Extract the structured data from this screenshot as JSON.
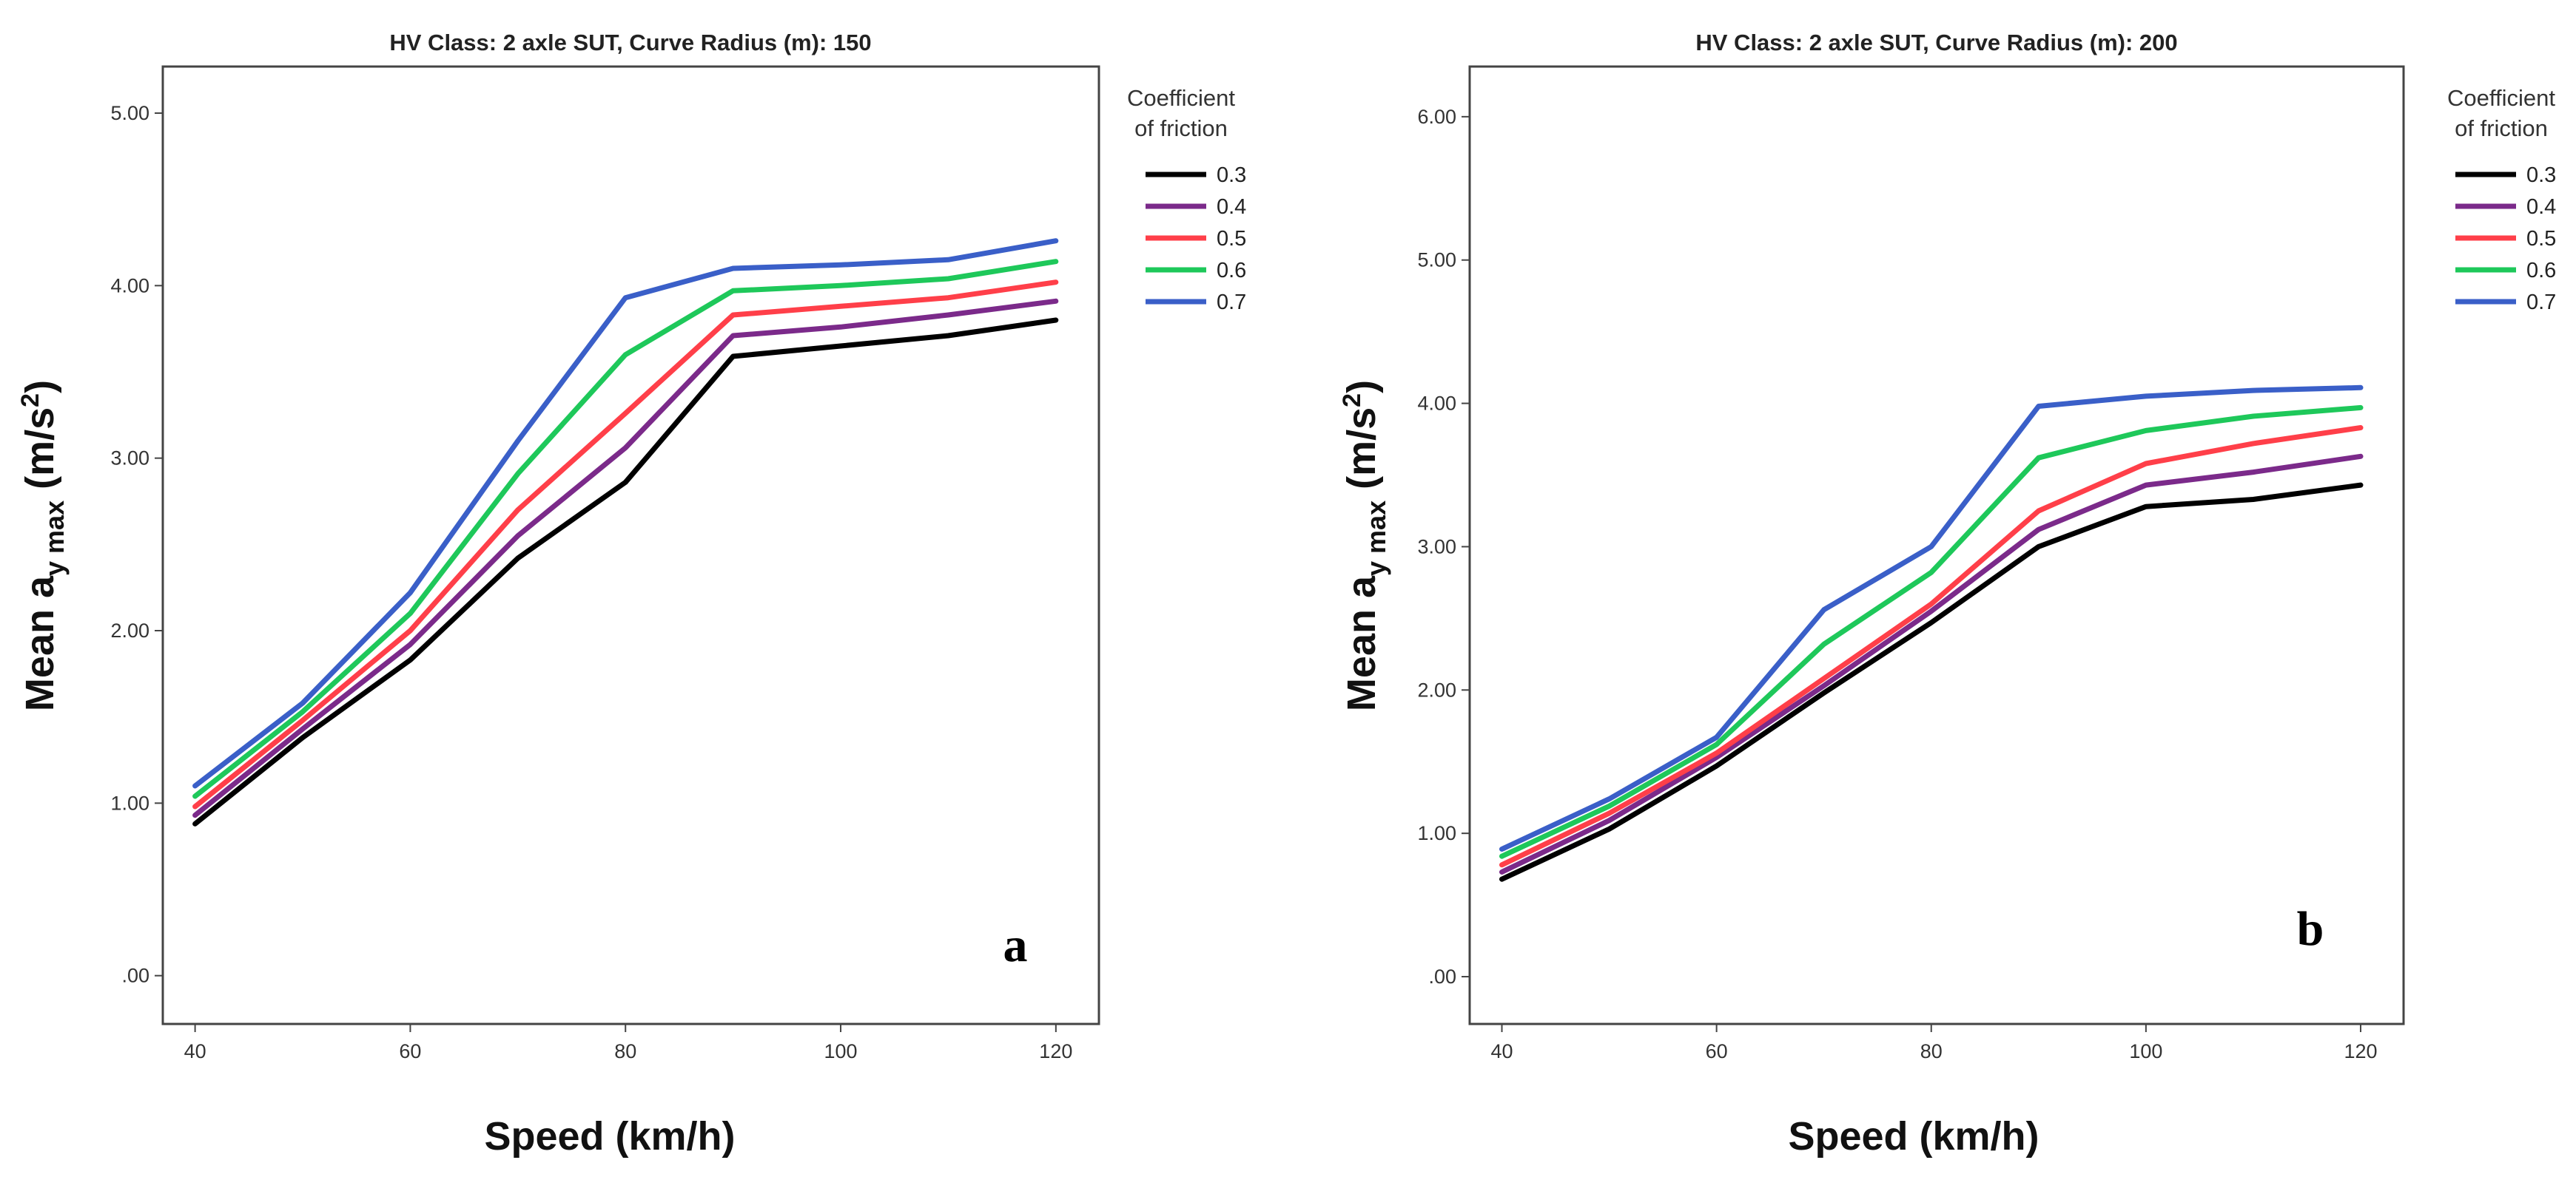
{
  "chart_data": [
    {
      "type": "line",
      "panel_label": "a",
      "title": "HV Class: 2 axle SUT, Curve Radius (m): 150",
      "xlabel": "Speed (km/h)",
      "ylabel_main": "Mean a",
      "ylabel_sub": "y max",
      "ylabel_unit": "(m/s",
      "ylabel_sup": "2",
      "ylabel_close": ")",
      "x": [
        40,
        50,
        60,
        70,
        80,
        90,
        100,
        110,
        120
      ],
      "xticks": [
        40,
        60,
        80,
        100,
        120
      ],
      "xtick_labels": [
        "40",
        "60",
        "80",
        "100",
        "120"
      ],
      "xlim": [
        37,
        124
      ],
      "yticks": [
        0,
        1,
        2,
        3,
        4,
        5
      ],
      "ytick_labels": [
        ".00",
        "1.00",
        "2.00",
        "3.00",
        "4.00",
        "5.00"
      ],
      "ylim": [
        -0.28,
        5.27
      ],
      "legend_title": [
        "Coefficient",
        "of friction"
      ],
      "series": [
        {
          "name": "0.3",
          "color": "#000000",
          "values": [
            0.88,
            1.38,
            1.83,
            2.42,
            2.86,
            3.59,
            3.65,
            3.71,
            3.8
          ]
        },
        {
          "name": "0.4",
          "color": "#7b2a8a",
          "values": [
            0.93,
            1.43,
            1.92,
            2.55,
            3.06,
            3.71,
            3.76,
            3.83,
            3.91
          ]
        },
        {
          "name": "0.5",
          "color": "#ff3f49",
          "values": [
            0.98,
            1.48,
            2.0,
            2.7,
            3.26,
            3.83,
            3.88,
            3.93,
            4.02
          ]
        },
        {
          "name": "0.6",
          "color": "#1ec85a",
          "values": [
            1.04,
            1.53,
            2.1,
            2.91,
            3.6,
            3.97,
            4.0,
            4.04,
            4.14
          ]
        },
        {
          "name": "0.7",
          "color": "#3a5fc8",
          "values": [
            1.1,
            1.58,
            2.22,
            3.1,
            3.93,
            4.1,
            4.12,
            4.15,
            4.26
          ]
        }
      ]
    },
    {
      "type": "line",
      "panel_label": "b",
      "title": "HV Class: 2 axle SUT, Curve Radius (m): 200",
      "xlabel": "Speed (km/h)",
      "ylabel_main": "Mean a",
      "ylabel_sub": "y max",
      "ylabel_unit": "(m/s",
      "ylabel_sup": "2",
      "ylabel_close": ")",
      "x": [
        40,
        50,
        60,
        70,
        80,
        90,
        100,
        110,
        120
      ],
      "xticks": [
        40,
        60,
        80,
        100,
        120
      ],
      "xtick_labels": [
        "40",
        "60",
        "80",
        "100",
        "120"
      ],
      "xlim": [
        37,
        124
      ],
      "yticks": [
        0,
        1,
        2,
        3,
        4,
        5,
        6
      ],
      "ytick_labels": [
        ".00",
        "1.00",
        "2.00",
        "3.00",
        "4.00",
        "5.00",
        "6.00"
      ],
      "ylim": [
        -0.33,
        6.35
      ],
      "legend_title": [
        "Coefficient",
        "of friction"
      ],
      "series": [
        {
          "name": "0.3",
          "color": "#000000",
          "values": [
            0.68,
            1.03,
            1.47,
            1.98,
            2.47,
            3.0,
            3.28,
            3.33,
            3.43
          ]
        },
        {
          "name": "0.4",
          "color": "#7b2a8a",
          "values": [
            0.73,
            1.09,
            1.53,
            2.03,
            2.55,
            3.12,
            3.43,
            3.52,
            3.63
          ]
        },
        {
          "name": "0.5",
          "color": "#ff3f49",
          "values": [
            0.78,
            1.14,
            1.56,
            2.08,
            2.6,
            3.25,
            3.58,
            3.72,
            3.83
          ]
        },
        {
          "name": "0.6",
          "color": "#1ec85a",
          "values": [
            0.84,
            1.19,
            1.62,
            2.32,
            2.82,
            3.62,
            3.81,
            3.91,
            3.97
          ]
        },
        {
          "name": "0.7",
          "color": "#3a5fc8",
          "values": [
            0.89,
            1.24,
            1.67,
            2.56,
            3.0,
            3.98,
            4.05,
            4.09,
            4.11
          ]
        }
      ]
    }
  ]
}
